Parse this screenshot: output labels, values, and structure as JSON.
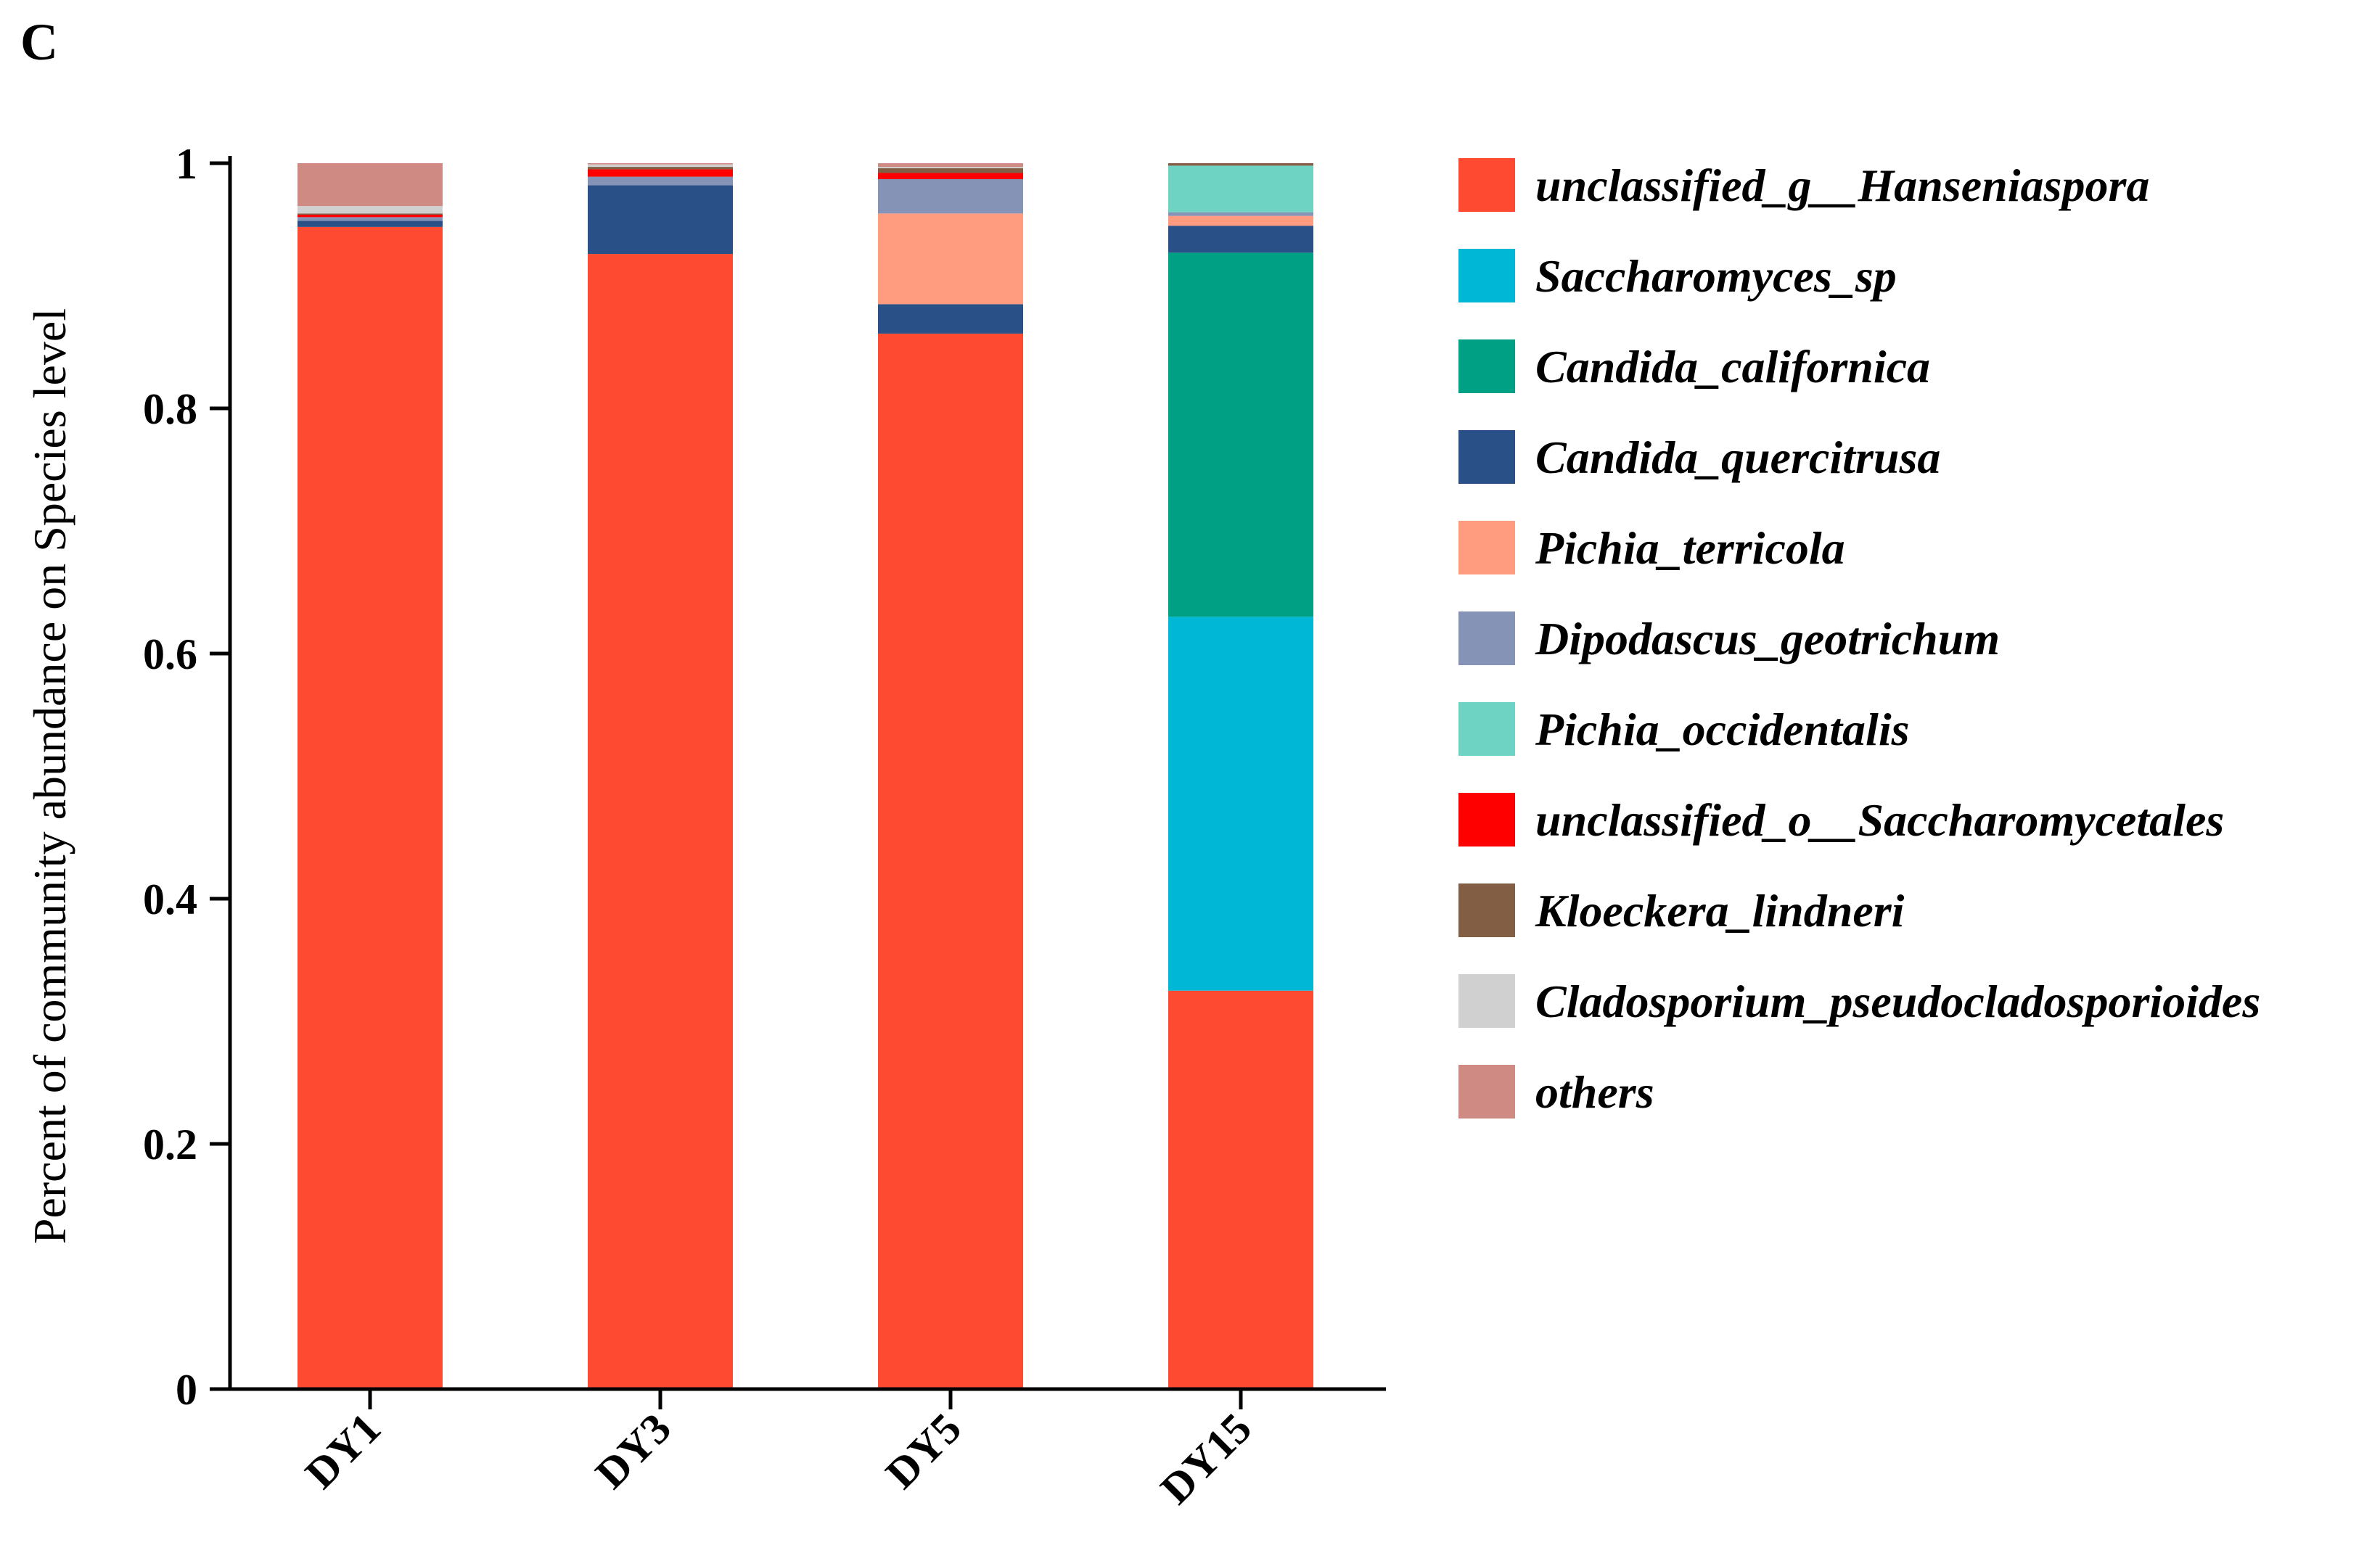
{
  "chart_data": {
    "type": "bar",
    "stacked": true,
    "panel_label": "C",
    "title": "",
    "xlabel": "",
    "ylabel": "Percent of community abundance on Species level",
    "ylim": [
      0,
      1
    ],
    "yticks": [
      0,
      0.2,
      0.4,
      0.6,
      0.8,
      1
    ],
    "ytick_labels": [
      "0",
      "0.2",
      "0.4",
      "0.6",
      "0.8",
      "1"
    ],
    "categories": [
      "DY1",
      "DY3",
      "DY5",
      "DY15"
    ],
    "legend_position": "right",
    "series": [
      {
        "name": "unclassified_g__Hanseniaspora",
        "color": "#FF4A32",
        "values": [
          0.948,
          0.926,
          0.861,
          0.325
        ]
      },
      {
        "name": "Saccharomyces_sp",
        "color": "#00B8D6",
        "values": [
          0,
          0,
          0,
          0.305
        ]
      },
      {
        "name": "Candida_californica",
        "color": "#00A084",
        "values": [
          0,
          0,
          0,
          0.297
        ]
      },
      {
        "name": "Candida_quercitrusa",
        "color": "#2A5088",
        "values": [
          0.005,
          0.056,
          0.024,
          0.022
        ]
      },
      {
        "name": "Pichia_terricola",
        "color": "#FF9C80",
        "values": [
          0,
          0,
          0.074,
          0.008
        ]
      },
      {
        "name": "Dipodascus_geotrichum",
        "color": "#8593B6",
        "values": [
          0.003,
          0.007,
          0.028,
          0.003
        ]
      },
      {
        "name": "Pichia_occidentalis",
        "color": "#6FD3C3",
        "values": [
          0,
          0,
          0,
          0.038
        ]
      },
      {
        "name": "unclassified_o__Saccharomycetales",
        "color": "#FF0000",
        "values": [
          0.002,
          0.006,
          0.005,
          0
        ]
      },
      {
        "name": "Kloeckera_lindneri",
        "color": "#825E45",
        "values": [
          0.001,
          0.002,
          0.004,
          0.002
        ]
      },
      {
        "name": "Cladosporium_pseudocladosporioides",
        "color": "#D0D0D0",
        "values": [
          0.006,
          0.002,
          0.001,
          0
        ]
      },
      {
        "name": "others",
        "color": "#CF8B83",
        "values": [
          0.035,
          0.001,
          0.003,
          0
        ]
      }
    ]
  }
}
